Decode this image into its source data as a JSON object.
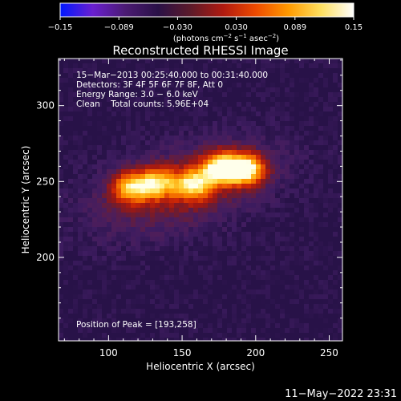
{
  "chart_data": {
    "type": "heatmap",
    "title": "Reconstructed RHESSI Image",
    "xlabel": "Heliocentric X (arcsec)",
    "ylabel": "Heliocentric Y (arcsec)",
    "xlim": [
      66,
      259
    ],
    "ylim": [
      145,
      331
    ],
    "x_ticks": [
      "100",
      "150",
      "200",
      "250"
    ],
    "y_ticks": [
      "200",
      "250",
      "300"
    ],
    "colorbar": {
      "min": -0.15,
      "max": 0.15,
      "ticks": [
        "−0.15",
        "−0.089",
        "−0.030",
        "0.030",
        "0.089",
        "0.15"
      ],
      "unit_prefix": "(photons cm",
      "unit_sup1": "−2",
      "unit_mid": " s",
      "unit_sup2": "−1",
      "unit_mid2": " asec",
      "unit_sup3": "−2",
      "unit_suffix": ")",
      "colors": [
        "#0018ff",
        "#6a1fd0",
        "#4b1b73",
        "#2a1147",
        "#5c1a2a",
        "#b01a10",
        "#ee4a00",
        "#ff9a00",
        "#ffe060",
        "#ffffff"
      ]
    },
    "annotations": [
      "15−Mar−2013 00:25:40.000 to 00:31:40.000",
      "Detectors: 3F 4F 5F 6F 7F 8F, Att 0",
      "Energy Range: 3.0 − 6.0 keV",
      "Clean    Total counts: 5.96E+04"
    ],
    "peak_label": "Position of Peak = [193,258]",
    "peak": [
      193,
      258
    ],
    "sources": [
      {
        "x": 115,
        "y": 246,
        "flux": 0.11
      },
      {
        "x": 133,
        "y": 249,
        "flux": 0.1
      },
      {
        "x": 158,
        "y": 248,
        "flux": 0.11
      },
      {
        "x": 176,
        "y": 259,
        "flux": 0.13
      },
      {
        "x": 193,
        "y": 258,
        "flux": 0.15
      }
    ],
    "background": "#3b1d5f"
  },
  "timestamp": "11−May−2022 23:31"
}
